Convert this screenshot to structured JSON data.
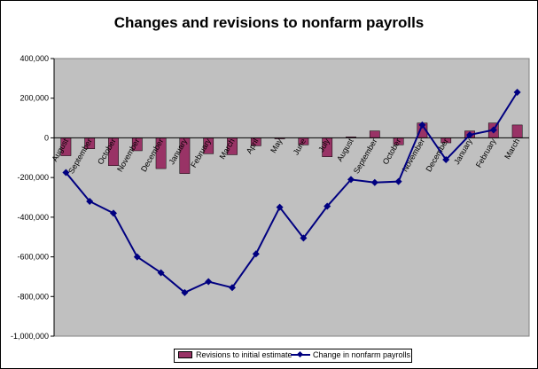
{
  "chart_data": {
    "type": "bar",
    "title": "Changes and revisions to nonfarm payrolls",
    "xlabel": "",
    "ylabel": "",
    "ylim": [
      -1000000,
      400000
    ],
    "ytick_values": [
      400000,
      200000,
      0,
      -200000,
      -400000,
      -600000,
      -800000,
      -1000000
    ],
    "ytick_labels": [
      "400,000",
      "200,000",
      "0",
      "-200,000",
      "-400,000",
      "-600,000",
      "-800,000",
      "-1,000,000"
    ],
    "categories": [
      "August",
      "September",
      "October",
      "November",
      "December",
      "January",
      "February",
      "March",
      "April",
      "May",
      "June",
      "July",
      "August",
      "September",
      "October",
      "November",
      "December",
      "January",
      "February",
      "March"
    ],
    "series": [
      {
        "name": "Revisions to initial estimate",
        "type": "bar",
        "color": "#993366",
        "values": [
          -90000,
          -55000,
          -140000,
          -65000,
          -155000,
          -180000,
          -80000,
          -85000,
          -40000,
          -5000,
          -35000,
          -95000,
          5000,
          35000,
          -35000,
          75000,
          -25000,
          35000,
          75000,
          65000
        ]
      },
      {
        "name": "Change in nonfarm payrolls",
        "type": "line",
        "color": "#000080",
        "values": [
          -175000,
          -320000,
          -380000,
          -600000,
          -680000,
          -780000,
          -725000,
          -755000,
          -585000,
          -350000,
          -505000,
          -345000,
          -210000,
          -225000,
          -220000,
          65000,
          -110000,
          15000,
          40000,
          230000
        ]
      }
    ],
    "legend": "bottom",
    "grid": false,
    "plot_background": "#c0c0c0"
  }
}
